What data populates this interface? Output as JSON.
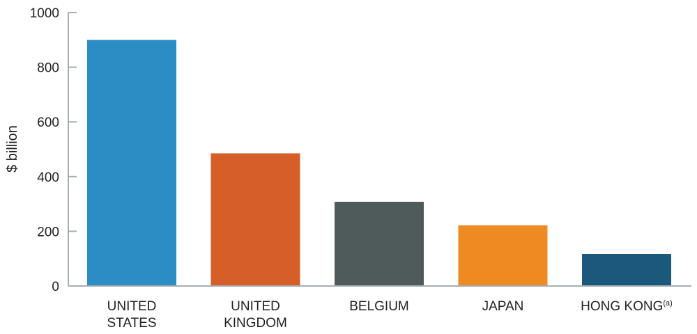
{
  "chart_data": {
    "type": "bar",
    "title": "",
    "xlabel": "",
    "ylabel": "$ billion",
    "ylim": [
      0,
      1000
    ],
    "yticks": [
      0,
      200,
      400,
      600,
      800,
      1000
    ],
    "grid": false,
    "legend": "none",
    "categories": [
      {
        "lines": [
          "UNITED",
          "STATES"
        ],
        "sup": ""
      },
      {
        "lines": [
          "UNITED",
          "KINGDOM"
        ],
        "sup": ""
      },
      {
        "lines": [
          "BELGIUM"
        ],
        "sup": ""
      },
      {
        "lines": [
          "JAPAN"
        ],
        "sup": ""
      },
      {
        "lines": [
          "HONG KONG"
        ],
        "sup": "(a)"
      }
    ],
    "values": [
      900,
      485,
      308,
      222,
      117
    ],
    "colors": [
      "#2b8dc4",
      "#d65f29",
      "#4f5b5a",
      "#ee8a22",
      "#1b587c"
    ],
    "axis_color": "#a6aeb2"
  }
}
